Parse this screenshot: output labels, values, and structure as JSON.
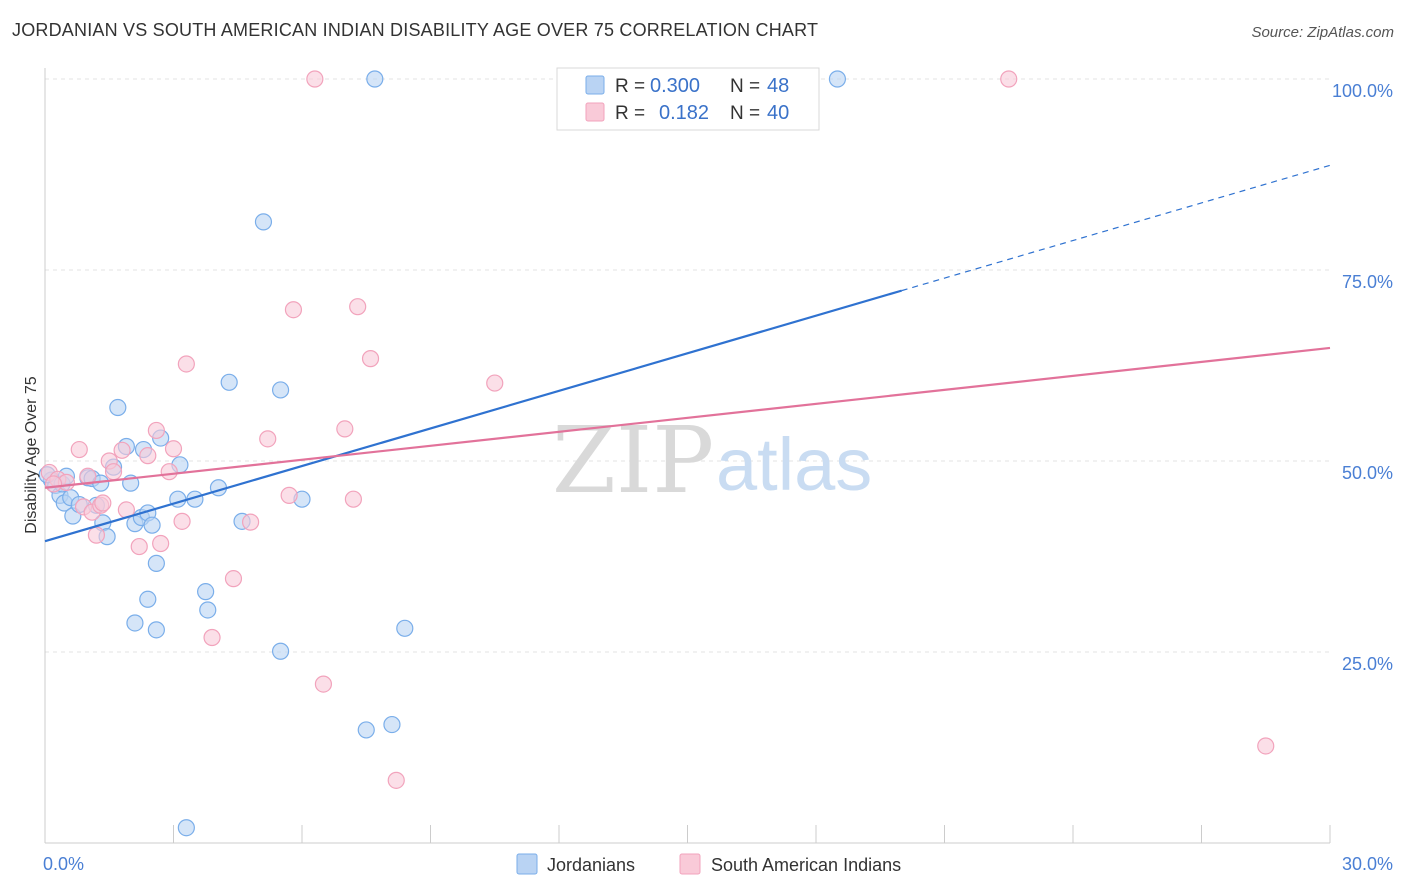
{
  "header": {
    "title": "JORDANIAN VS SOUTH AMERICAN INDIAN DISABILITY AGE OVER 75 CORRELATION CHART",
    "source": "Source: ZipAtlas.com"
  },
  "watermark": {
    "zip": "ZIP",
    "atlas": "atlas"
  },
  "legend": {
    "rows": [
      {
        "r_label": "R =",
        "r_value": "0.300",
        "n_label": "N =",
        "n_value": "48",
        "color": "#7aaeea"
      },
      {
        "r_label": "R =",
        "r_value": "0.182",
        "n_label": "N =",
        "n_value": "40",
        "color": "#f2a3bc"
      }
    ]
  },
  "bottom_legend": [
    {
      "label": "Jordanians",
      "color": "#7aaeea"
    },
    {
      "label": "South American Indians",
      "color": "#f2a3bc"
    }
  ],
  "colors": {
    "blue_point_fill": "#b9d3f3",
    "blue_point_stroke": "#7aaeea",
    "blue_line": "#2f72d0",
    "pink_point_fill": "#f9cad8",
    "pink_point_stroke": "#f2a3bc",
    "pink_line": "#e2729a",
    "grid": "#e3e3e3",
    "tick_text": "#4a7fd4"
  },
  "chart_data": {
    "type": "scatter",
    "title": "JORDANIAN VS SOUTH AMERICAN INDIAN DISABILITY AGE OVER 75 CORRELATION CHART",
    "xlabel": "",
    "ylabel": "Disability Age Over 75",
    "xlim": [
      0,
      30
    ],
    "ylim": [
      0,
      100
    ],
    "x_ticks": [
      "0.0%",
      "30.0%"
    ],
    "y_ticks": [
      "100.0%",
      "75.0%",
      "50.0%",
      "25.0%"
    ],
    "y_tick_values": [
      100,
      75,
      50,
      25
    ],
    "grid": true,
    "legend_position": "top-center",
    "series": [
      {
        "name": "Jordanians",
        "r": 0.3,
        "n": 48,
        "trend": {
          "x0": 0,
          "y0": 39.5,
          "x1": 20,
          "y1": 72.3,
          "dashed_to_x": 30,
          "dashed_to_y": 88.7
        },
        "points": [
          [
            0.15,
            47.5
          ],
          [
            0.25,
            46.8
          ],
          [
            0.35,
            45.5
          ],
          [
            0.4,
            47.0
          ],
          [
            0.45,
            44.5
          ],
          [
            0.5,
            48.0
          ],
          [
            0.6,
            45.2
          ],
          [
            0.65,
            42.8
          ],
          [
            0.8,
            44.3
          ],
          [
            1.0,
            47.8
          ],
          [
            1.1,
            47.7
          ],
          [
            1.2,
            44.2
          ],
          [
            1.3,
            47.1
          ],
          [
            1.35,
            41.9
          ],
          [
            1.45,
            40.1
          ],
          [
            1.6,
            49.2
          ],
          [
            1.7,
            57.0
          ],
          [
            1.9,
            51.9
          ],
          [
            2.0,
            47.1
          ],
          [
            2.1,
            41.8
          ],
          [
            2.1,
            28.8
          ],
          [
            2.25,
            42.6
          ],
          [
            2.3,
            51.5
          ],
          [
            2.4,
            31.9
          ],
          [
            2.4,
            43.2
          ],
          [
            2.5,
            41.6
          ],
          [
            2.6,
            27.9
          ],
          [
            2.6,
            36.6
          ],
          [
            2.7,
            53.0
          ],
          [
            3.1,
            45.0
          ],
          [
            3.15,
            49.5
          ],
          [
            3.3,
            2.0
          ],
          [
            3.5,
            45.0
          ],
          [
            3.75,
            32.9
          ],
          [
            3.8,
            30.5
          ],
          [
            4.05,
            46.5
          ],
          [
            4.3,
            60.3
          ],
          [
            4.6,
            42.1
          ],
          [
            5.1,
            81.3
          ],
          [
            5.5,
            59.3
          ],
          [
            5.5,
            25.1
          ],
          [
            6.0,
            45.0
          ],
          [
            7.5,
            14.8
          ],
          [
            7.7,
            100.0
          ],
          [
            8.1,
            15.5
          ],
          [
            8.4,
            28.1
          ],
          [
            18.5,
            100.0
          ],
          [
            0.05,
            48.2
          ]
        ]
      },
      {
        "name": "South American Indians",
        "r": 0.182,
        "n": 40,
        "trend": {
          "x0": 0,
          "y0": 46.5,
          "x1": 30,
          "y1": 64.8
        },
        "points": [
          [
            0.1,
            48.5
          ],
          [
            0.3,
            47.6
          ],
          [
            0.5,
            47.2
          ],
          [
            0.8,
            51.5
          ],
          [
            0.9,
            44.0
          ],
          [
            1.1,
            43.3
          ],
          [
            1.2,
            40.3
          ],
          [
            1.3,
            44.2
          ],
          [
            1.35,
            44.5
          ],
          [
            1.5,
            50.0
          ],
          [
            1.6,
            48.6
          ],
          [
            1.8,
            51.4
          ],
          [
            1.9,
            43.6
          ],
          [
            2.2,
            38.8
          ],
          [
            2.4,
            50.7
          ],
          [
            2.6,
            54.0
          ],
          [
            2.7,
            39.2
          ],
          [
            2.9,
            48.6
          ],
          [
            3.0,
            51.6
          ],
          [
            3.2,
            42.1
          ],
          [
            3.3,
            62.7
          ],
          [
            3.9,
            26.9
          ],
          [
            4.4,
            34.6
          ],
          [
            4.8,
            42.0
          ],
          [
            5.2,
            52.9
          ],
          [
            5.7,
            45.5
          ],
          [
            5.8,
            69.8
          ],
          [
            6.3,
            100.0
          ],
          [
            6.5,
            20.8
          ],
          [
            7.0,
            54.2
          ],
          [
            7.2,
            45.0
          ],
          [
            7.3,
            70.2
          ],
          [
            7.6,
            63.4
          ],
          [
            8.2,
            8.2
          ],
          [
            10.5,
            60.2
          ],
          [
            13.8,
            100.0
          ],
          [
            22.5,
            100.0
          ],
          [
            28.5,
            12.7
          ],
          [
            0.2,
            47.0
          ],
          [
            1.0,
            48.0
          ]
        ]
      }
    ]
  }
}
